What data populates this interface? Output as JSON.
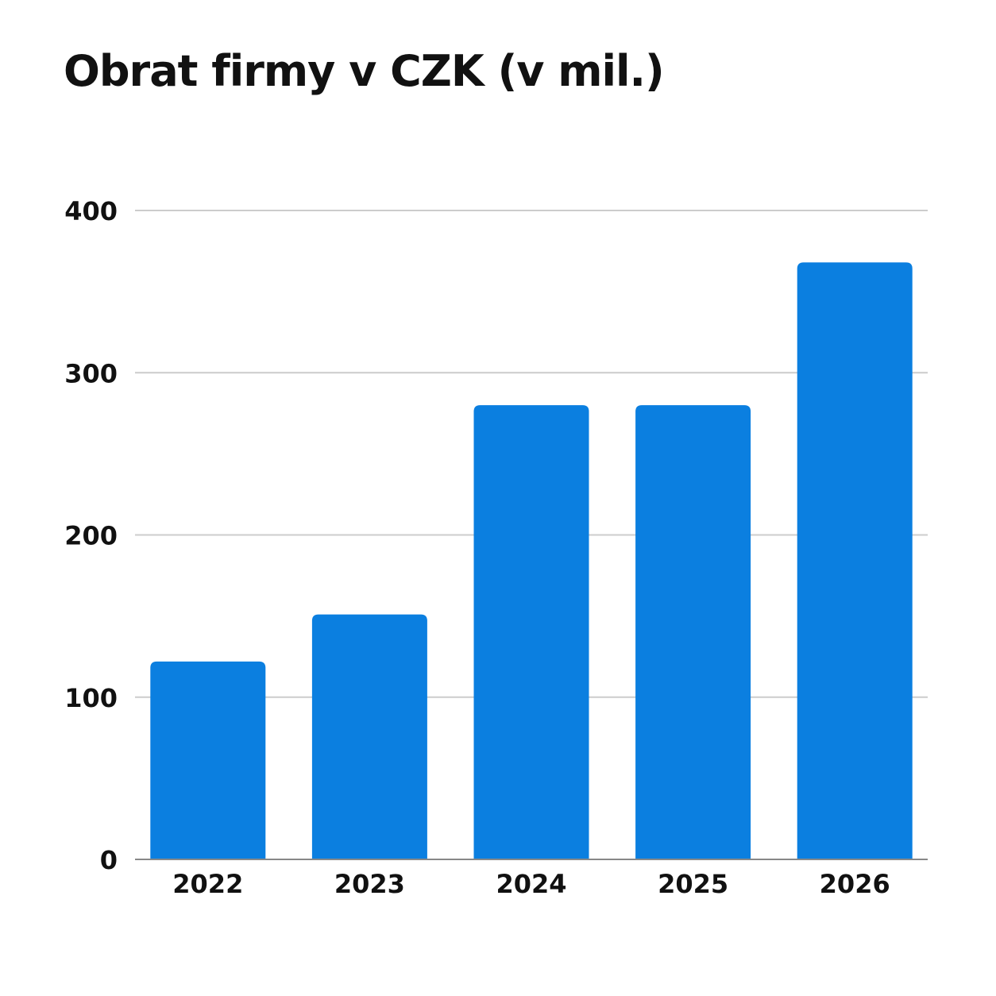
{
  "chart_data": {
    "type": "bar",
    "title": "Obrat firmy v CZK (v mil.)",
    "xlabel": "",
    "ylabel": "",
    "categories": [
      "2022",
      "2023",
      "2024",
      "2025",
      "2026"
    ],
    "values": [
      122,
      151,
      280,
      280,
      368
    ],
    "ylim": [
      0,
      400
    ],
    "yticks": [
      0,
      100,
      200,
      300,
      400
    ],
    "grid": true,
    "legend": "none",
    "colors": {
      "bar": "#0b7fe0",
      "grid": "#cccccc",
      "axis": "#888888"
    }
  }
}
